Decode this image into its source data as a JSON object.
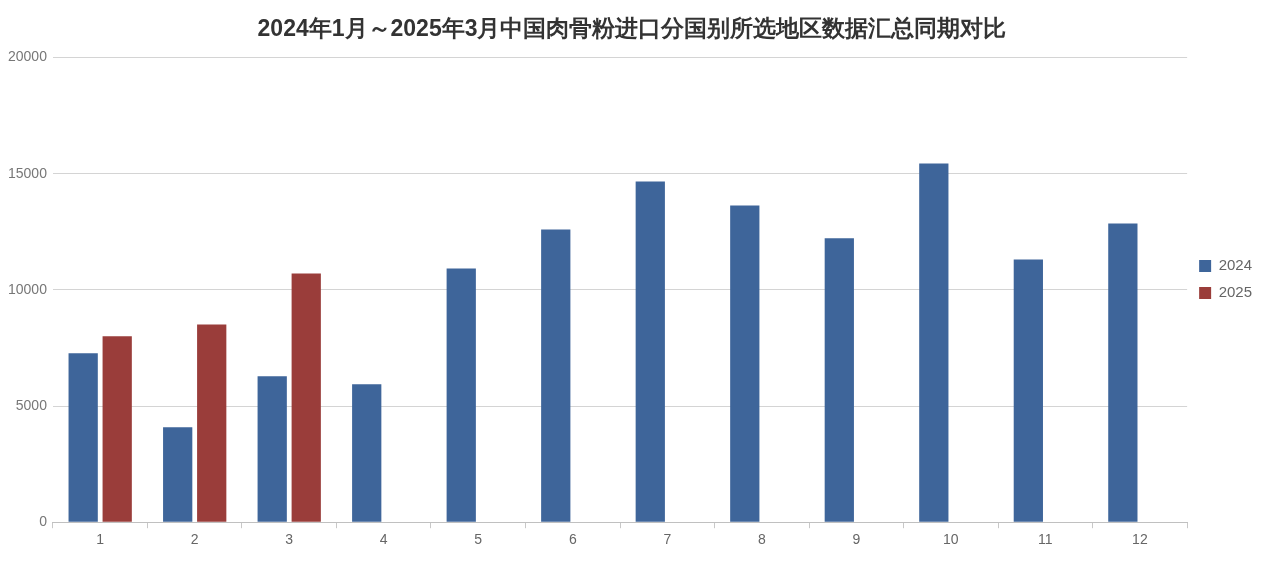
{
  "chart_data": {
    "type": "bar",
    "title": "2024年1月～2025年3月中国肉骨粉进口分国别所选地区数据汇总同期对比",
    "categories": [
      "1",
      "2",
      "3",
      "4",
      "5",
      "6",
      "7",
      "8",
      "9",
      "10",
      "11",
      "12"
    ],
    "series": [
      {
        "name": "2024",
        "color": "#3e659a",
        "values": [
          7270,
          4090,
          6280,
          5940,
          10920,
          12600,
          14670,
          13630,
          12220,
          15440,
          11310,
          12860
        ]
      },
      {
        "name": "2025",
        "color": "#9a3d3a",
        "values": [
          8000,
          8510,
          10710,
          null,
          null,
          null,
          null,
          null,
          null,
          null,
          null,
          null
        ]
      }
    ],
    "ylim": [
      0,
      20000
    ],
    "yticks": [
      0,
      5000,
      10000,
      15000,
      20000
    ],
    "grid": "y",
    "legend": "right"
  }
}
